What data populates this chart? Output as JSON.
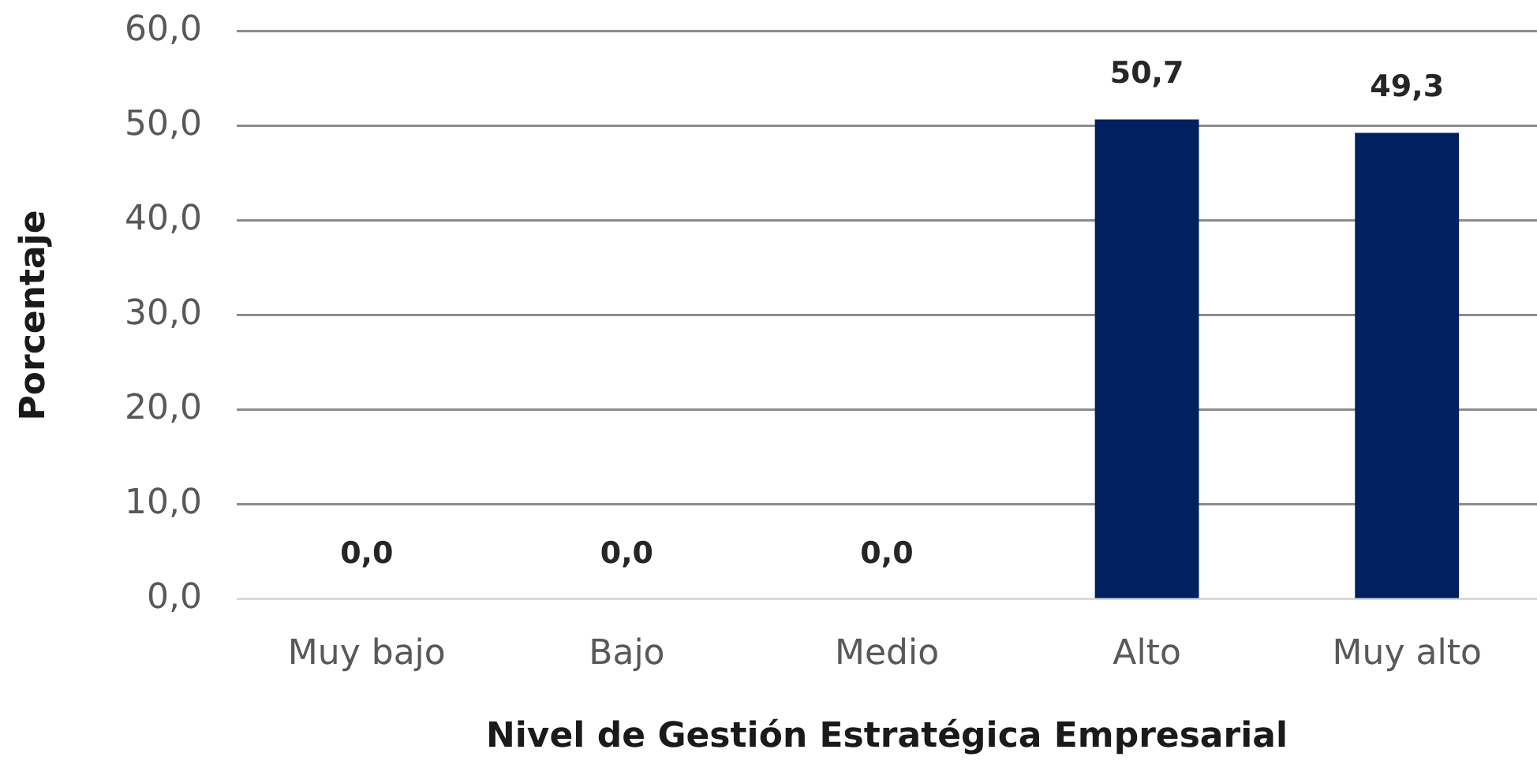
{
  "chart_data": {
    "type": "bar",
    "xlabel": "Nivel de Gestión Estratégica Empresarial",
    "ylabel": "Porcentaje",
    "categories": [
      "Muy bajo",
      "Bajo",
      "Medio",
      "Alto",
      "Muy alto"
    ],
    "values": [
      0,
      0,
      0,
      50.7,
      49.3
    ],
    "color": "#002060",
    "value_labels": [
      "0,0",
      "0,0",
      "0,0",
      "50,7",
      "49,3"
    ],
    "ylim": [
      0,
      60
    ],
    "yticks": [
      {
        "value": 0,
        "label": "0,0"
      },
      {
        "value": 10,
        "label": "10,0"
      },
      {
        "value": 20,
        "label": "20,0"
      },
      {
        "value": 30,
        "label": "30,0"
      },
      {
        "value": 40,
        "label": "40,0"
      },
      {
        "value": 50,
        "label": "50,0"
      },
      {
        "value": 60,
        "label": "60,0"
      }
    ],
    "grid": "y"
  }
}
